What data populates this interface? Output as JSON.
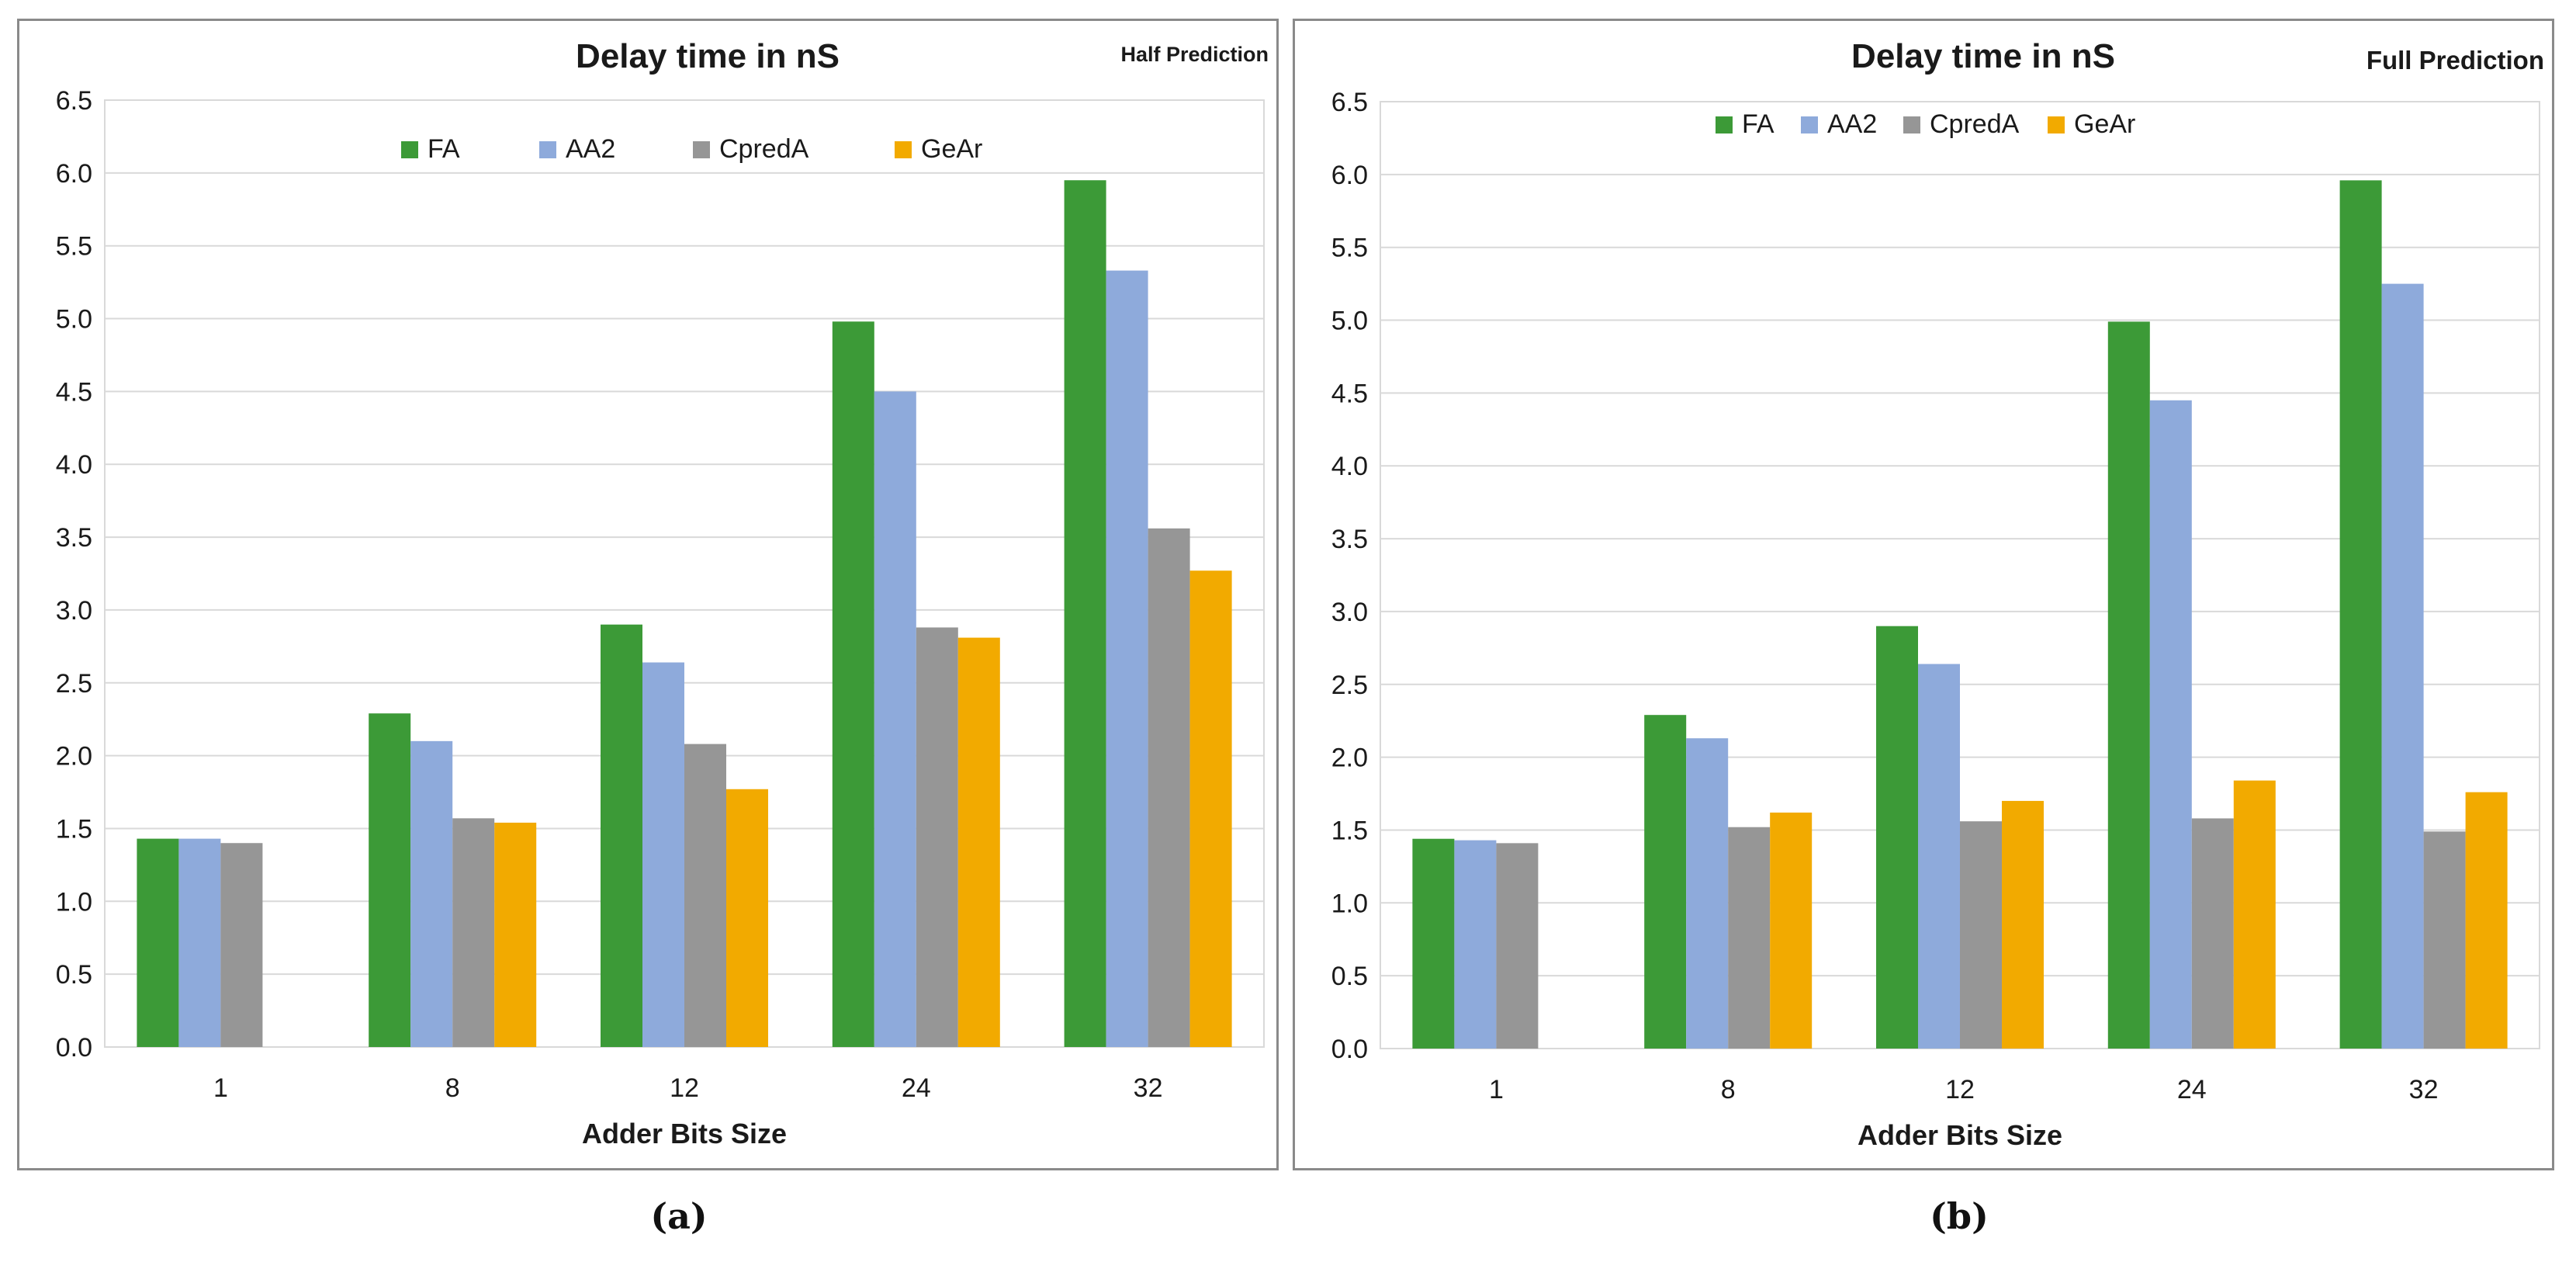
{
  "colors": {
    "FA": "#3c9a37",
    "AA2": "#8eaadb",
    "CpredA": "#969696",
    "GeAr": "#f2aa00",
    "grid": "#d9d9d9",
    "text": "#1a1a1a"
  },
  "chart_data": [
    {
      "type": "bar",
      "title": "Delay time in nS",
      "subtitle": "Half Prediction",
      "xlabel": "Adder Bits Size",
      "ylabel": "",
      "ylim": [
        0,
        6.5
      ],
      "yticks": [
        "0.0",
        "0.5",
        "1.0",
        "1.5",
        "2.0",
        "2.5",
        "3.0",
        "3.5",
        "4.0",
        "4.5",
        "5.0",
        "5.5",
        "6.0",
        "6.5"
      ],
      "grid": true,
      "legend": "top-center",
      "categories": [
        "1",
        "8",
        "12",
        "24",
        "32"
      ],
      "series": [
        {
          "name": "FA",
          "values": [
            1.43,
            2.29,
            2.9,
            4.98,
            5.95
          ]
        },
        {
          "name": "AA2",
          "values": [
            1.43,
            2.1,
            2.64,
            4.5,
            5.33
          ]
        },
        {
          "name": "CpredA",
          "values": [
            1.4,
            1.57,
            2.08,
            2.88,
            3.56
          ]
        },
        {
          "name": "GeAr",
          "values": [
            null,
            1.54,
            1.77,
            2.81,
            3.27
          ]
        }
      ],
      "caption": "(a)"
    },
    {
      "type": "bar",
      "title": "Delay time in nS",
      "subtitle": "Full Prediction",
      "xlabel": "Adder Bits Size",
      "ylabel": "",
      "ylim": [
        0,
        6.5
      ],
      "yticks": [
        "0.0",
        "0.5",
        "1.0",
        "1.5",
        "2.0",
        "2.5",
        "3.0",
        "3.5",
        "4.0",
        "4.5",
        "5.0",
        "5.5",
        "6.0",
        "6.5"
      ],
      "grid": true,
      "legend": "top-center",
      "categories": [
        "1",
        "8",
        "12",
        "24",
        "32"
      ],
      "series": [
        {
          "name": "FA",
          "values": [
            1.44,
            2.29,
            2.9,
            4.99,
            5.96
          ]
        },
        {
          "name": "AA2",
          "values": [
            1.43,
            2.13,
            2.64,
            4.45,
            5.25
          ]
        },
        {
          "name": "CpredA",
          "values": [
            1.41,
            1.52,
            1.56,
            1.58,
            1.49
          ]
        },
        {
          "name": "GeAr",
          "values": [
            null,
            1.62,
            1.7,
            1.84,
            1.76
          ]
        }
      ],
      "caption": "(b)"
    }
  ]
}
